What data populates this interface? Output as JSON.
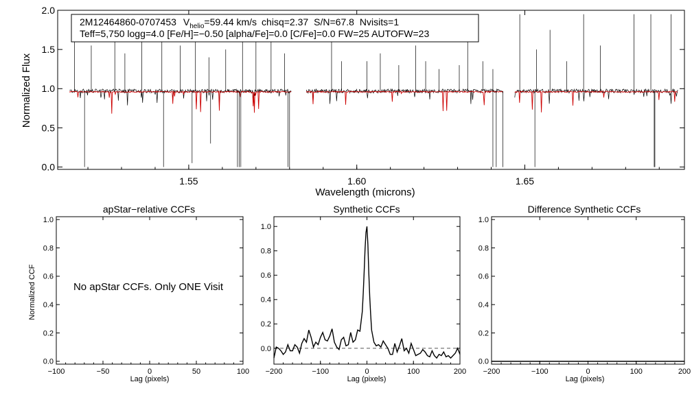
{
  "chart_data": [
    {
      "type": "line",
      "panel": "spectrum",
      "info_line1": {
        "star_id": "2M12464860-0707453",
        "vhelio_label": "V",
        "vhelio_subscript": "helio",
        "vhelio_value": "=59.44 km/s",
        "chisq": "chisq=2.37",
        "snr": "S/N=67.8",
        "nvisits": "Nvisits=1"
      },
      "info_line2": "Teff=5,750 logg=4.0 [Fe/H]=−0.50 [alpha/Fe]=0.0 [C/Fe]=0.0 FW=25 AUTOFW=23",
      "xlabel": "Wavelength (microns)",
      "ylabel": "Normalized Flux",
      "xlim": [
        1.511,
        1.6975
      ],
      "ylim": [
        -0.03,
        2.0
      ],
      "xticks": [
        "1.55",
        "1.60",
        "1.65"
      ],
      "xtick_values": [
        1.55,
        1.6,
        1.65
      ],
      "yticks": [
        "0.0",
        "0.5",
        "1.0",
        "1.5",
        "2.0"
      ],
      "ytick_values": [
        0.0,
        0.5,
        1.0,
        1.5,
        2.0
      ],
      "chip_ranges": [
        [
          1.5145,
          1.5805
        ],
        [
          1.585,
          1.6435
        ],
        [
          1.647,
          1.6955
        ]
      ],
      "continuum_level": 0.97,
      "model_level": 0.96,
      "series": [
        {
          "name": "observed spectrum",
          "color": "#000000"
        },
        {
          "name": "synthetic model",
          "color": "#cc0000"
        }
      ],
      "spikes_up": [
        1.516,
        1.521,
        1.528,
        1.531,
        1.536,
        1.542,
        1.5475,
        1.552,
        1.556,
        1.561,
        1.566,
        1.57,
        1.5745,
        1.5785,
        1.5925,
        1.5955,
        1.603,
        1.607,
        1.6125,
        1.6175,
        1.6205,
        1.6245,
        1.6305,
        1.633,
        1.6375,
        1.6405,
        1.6485,
        1.6535,
        1.6575,
        1.6625,
        1.6675,
        1.6725,
        1.6825,
        1.6875,
        1.6935
      ],
      "spikes_up_heights": [
        1.95,
        1.55,
        1.7,
        1.45,
        1.9,
        1.6,
        1.55,
        1.75,
        1.4,
        1.5,
        1.95,
        1.6,
        1.85,
        1.45,
        1.9,
        1.35,
        1.35,
        1.45,
        1.3,
        1.55,
        1.35,
        1.25,
        1.3,
        1.7,
        1.35,
        1.25,
        1.95,
        1.5,
        1.75,
        1.35,
        1.95,
        1.55,
        1.95,
        1.95,
        1.95
      ],
      "spikes_down": [
        1.519,
        1.5425,
        1.551,
        1.5565,
        1.5645,
        1.565,
        1.5655,
        1.5795,
        1.58,
        1.6405,
        1.6415,
        1.6435,
        1.653,
        1.6885,
        1.6887
      ],
      "spikes_down_depths": [
        0.0,
        0.0,
        0.05,
        0.3,
        0.0,
        0.0,
        0.0,
        0.0,
        0.0,
        0.0,
        0.0,
        0.0,
        0.0,
        0.0,
        0.0
      ]
    },
    {
      "type": "line",
      "panel": "apstar_ccf",
      "title": "apStar−relative CCFs",
      "xlabel": "Lag (pixels)",
      "ylabel": "Normalized CCF",
      "xlim": [
        -100,
        100
      ],
      "ylim": [
        -0.02,
        1.02
      ],
      "xticks": [
        "−100",
        "−50",
        "0",
        "50",
        "100"
      ],
      "xtick_values": [
        -100,
        -50,
        0,
        50,
        100
      ],
      "yticks": [
        "0.0",
        "0.2",
        "0.4",
        "0.6",
        "0.8",
        "1.0"
      ],
      "ytick_values": [
        0.0,
        0.2,
        0.4,
        0.6,
        0.8,
        1.0
      ],
      "annotation": "No apStar CCFs.  Only ONE Visit",
      "series": []
    },
    {
      "type": "line",
      "panel": "synthetic_ccf",
      "title": "Synthetic CCFs",
      "xlabel": "Lag (pixels)",
      "xlim": [
        -200,
        200
      ],
      "ylim": [
        -0.13,
        1.08
      ],
      "xticks": [
        "−200",
        "−100",
        "0",
        "100",
        "200"
      ],
      "xtick_values": [
        -200,
        -100,
        0,
        100,
        200
      ],
      "yticks": [
        "0.0",
        "0.2",
        "0.4",
        "0.6",
        "0.8",
        "1.0"
      ],
      "ytick_values": [
        0.0,
        0.2,
        0.4,
        0.6,
        0.8,
        1.0
      ],
      "zero_line": 0.0,
      "series": [
        {
          "name": "synthetic CCF",
          "x": [
            -200,
            -195,
            -190,
            -185,
            -180,
            -175,
            -170,
            -165,
            -160,
            -155,
            -150,
            -145,
            -140,
            -135,
            -130,
            -125,
            -120,
            -115,
            -110,
            -105,
            -100,
            -95,
            -90,
            -85,
            -80,
            -75,
            -70,
            -65,
            -60,
            -55,
            -50,
            -45,
            -40,
            -35,
            -30,
            -25,
            -20,
            -15,
            -10,
            -8,
            -6,
            -4,
            -2,
            0,
            2,
            4,
            6,
            8,
            10,
            15,
            20,
            25,
            30,
            35,
            40,
            45,
            50,
            55,
            60,
            65,
            70,
            75,
            80,
            85,
            90,
            95,
            100,
            105,
            110,
            115,
            120,
            125,
            130,
            135,
            140,
            145,
            150,
            155,
            160,
            165,
            170,
            175,
            180,
            185,
            190,
            195,
            200
          ],
          "y": [
            -0.08,
            0.01,
            0.0,
            -0.02,
            -0.05,
            -0.03,
            0.03,
            -0.02,
            -0.02,
            0.03,
            0.01,
            -0.04,
            0.04,
            0.08,
            0.05,
            0.15,
            0.09,
            0.01,
            0.05,
            0.03,
            0.09,
            0.13,
            0.07,
            0.06,
            0.1,
            0.16,
            0.05,
            0.01,
            -0.01,
            0.07,
            0.09,
            0.02,
            0.03,
            0.13,
            0.05,
            0.07,
            0.15,
            0.14,
            0.3,
            0.45,
            0.62,
            0.82,
            0.95,
            1.0,
            0.85,
            0.62,
            0.42,
            0.28,
            0.15,
            0.05,
            0.02,
            0.03,
            0.01,
            0.06,
            0.03,
            0.0,
            -0.05,
            -0.05,
            0.04,
            -0.03,
            0.02,
            0.08,
            -0.02,
            0.0,
            -0.04,
            0.04,
            -0.01,
            -0.06,
            -0.05,
            -0.04,
            -0.01,
            -0.03,
            -0.06,
            -0.07,
            -0.02,
            -0.06,
            -0.08,
            -0.05,
            -0.06,
            -0.03,
            -0.07,
            -0.06,
            -0.08,
            -0.06,
            -0.04,
            0.0,
            -0.05
          ]
        }
      ]
    },
    {
      "type": "line",
      "panel": "difference_ccf",
      "title": "Difference Synthetic CCFs",
      "xlabel": "Lag (pixels)",
      "xlim": [
        -200,
        200
      ],
      "ylim": [
        -0.02,
        1.02
      ],
      "xticks": [
        "−200",
        "−100",
        "0",
        "100",
        "200"
      ],
      "xtick_values": [
        -200,
        -100,
        0,
        100,
        200
      ],
      "yticks": [
        "0.0",
        "0.2",
        "0.4",
        "0.6",
        "0.8",
        "1.0"
      ],
      "ytick_values": [
        0.0,
        0.2,
        0.4,
        0.6,
        0.8,
        1.0
      ],
      "series": [
        {
          "name": "difference CCF",
          "x": [
            -200,
            200
          ],
          "y": [
            0.0,
            0.0
          ]
        }
      ]
    }
  ]
}
